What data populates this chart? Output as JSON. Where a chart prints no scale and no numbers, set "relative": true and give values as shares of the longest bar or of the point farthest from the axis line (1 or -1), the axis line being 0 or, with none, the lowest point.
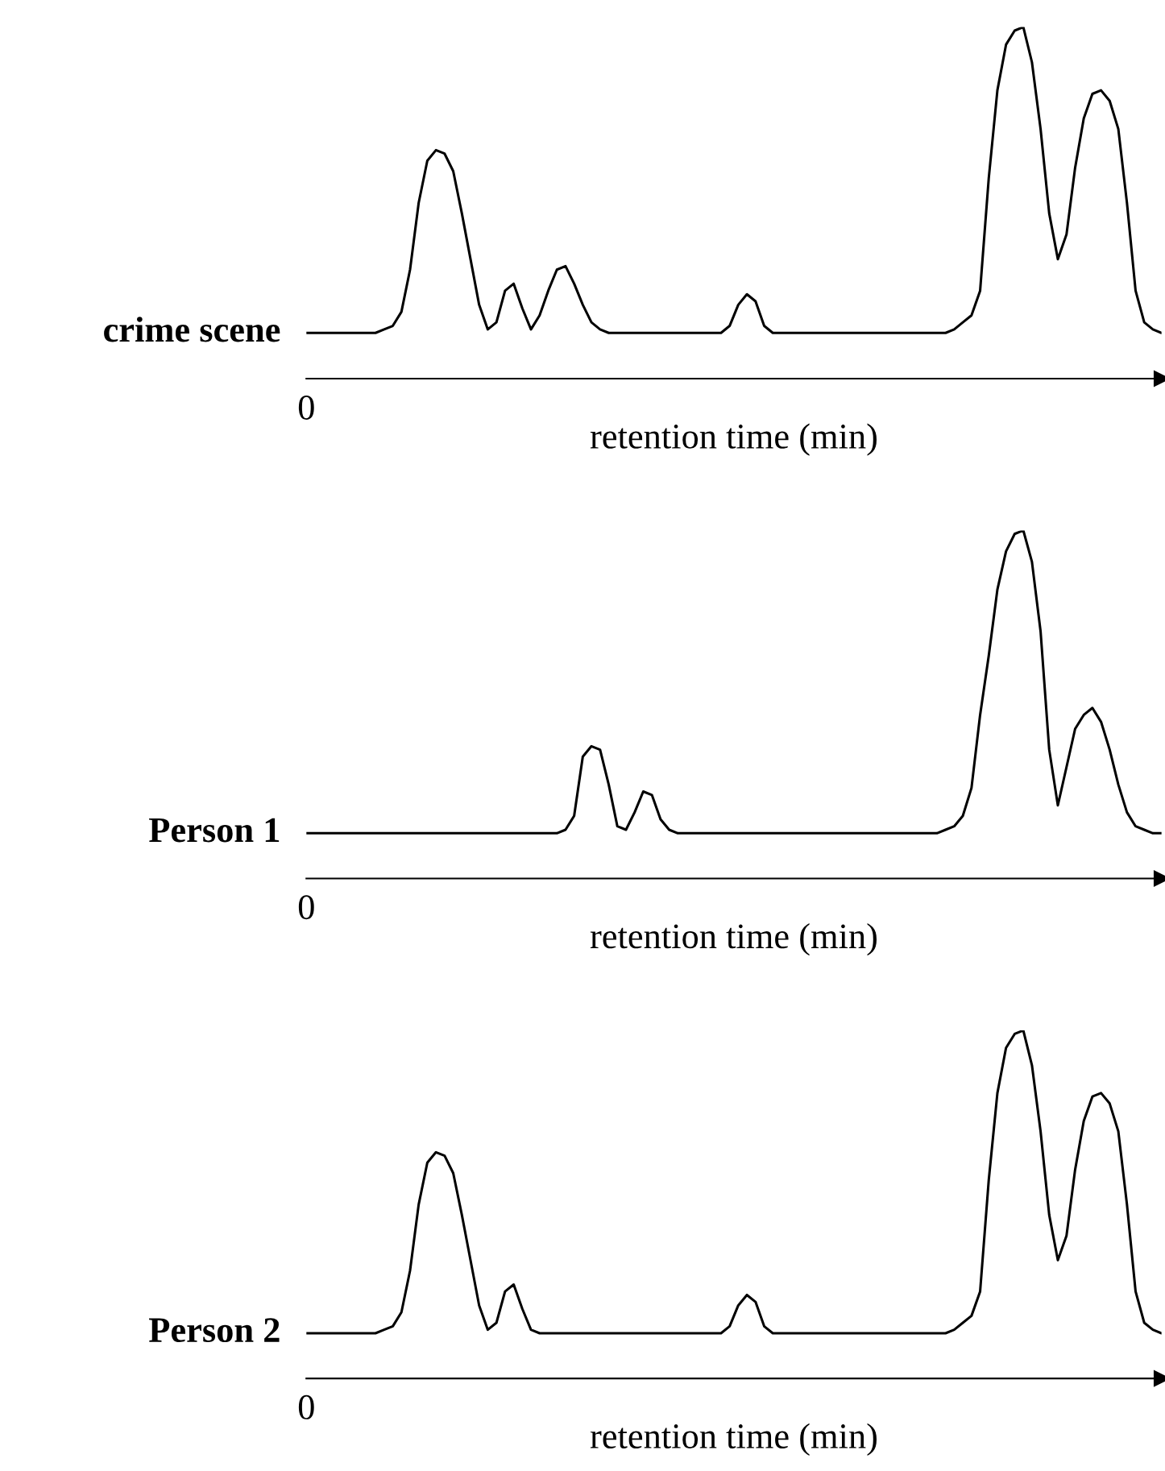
{
  "chart_data": [
    {
      "type": "line",
      "relative": true,
      "ylabel": "crime scene",
      "xlabel": "retention time (min)",
      "annotations": [
        "0"
      ],
      "categories": [
        null,
        null,
        null,
        null,
        null,
        null,
        null,
        null,
        null,
        null,
        null,
        null,
        null,
        null,
        null,
        null,
        null,
        null,
        null,
        null,
        null,
        null,
        null,
        null,
        null,
        null,
        null,
        null,
        null,
        null,
        null,
        null,
        null,
        null,
        null,
        null,
        null,
        null,
        null,
        null,
        null,
        null,
        null,
        null,
        null,
        null,
        null,
        null,
        null,
        null,
        null,
        null,
        null,
        null,
        null,
        null,
        null,
        null,
        null,
        null,
        null,
        null,
        null,
        null,
        null,
        null,
        null,
        null,
        null,
        null,
        null,
        null,
        null,
        null,
        null,
        null,
        null,
        null,
        null,
        null,
        null,
        null,
        null,
        null,
        null,
        null,
        null,
        null,
        null,
        null,
        null,
        null,
        null,
        null,
        null,
        null,
        null,
        null,
        null,
        null
      ],
      "series": [
        {
          "color": "#000000",
          "values": [
            0.13,
            0.13,
            0.13,
            0.13,
            0.13,
            0.13,
            0.13,
            0.13,
            0.13,
            0.14,
            0.15,
            0.19,
            0.31,
            0.5,
            0.62,
            0.65,
            0.64,
            0.59,
            0.47,
            0.34,
            0.21,
            0.14,
            0.16,
            0.25,
            0.27,
            0.2,
            0.14,
            0.18,
            0.25,
            0.31,
            0.32,
            0.27,
            0.21,
            0.16,
            0.14,
            0.13,
            0.13,
            0.13,
            0.13,
            0.13,
            0.13,
            0.13,
            0.13,
            0.13,
            0.13,
            0.13,
            0.13,
            0.13,
            0.13,
            0.15,
            0.21,
            0.24,
            0.22,
            0.15,
            0.13,
            0.13,
            0.13,
            0.13,
            0.13,
            0.13,
            0.13,
            0.13,
            0.13,
            0.13,
            0.13,
            0.13,
            0.13,
            0.13,
            0.13,
            0.13,
            0.13,
            0.13,
            0.13,
            0.13,
            0.13,
            0.14,
            0.16,
            0.18,
            0.25,
            0.57,
            0.82,
            0.95,
            0.99,
            1.0,
            0.9,
            0.71,
            0.47,
            0.34,
            0.41,
            0.6,
            0.74,
            0.81,
            0.82,
            0.79,
            0.71,
            0.5,
            0.25,
            0.16,
            0.14,
            0.13
          ]
        }
      ]
    },
    {
      "type": "line",
      "relative": true,
      "ylabel": "Person 1",
      "xlabel": "retention time (min)",
      "annotations": [
        "0"
      ],
      "categories": [
        null,
        null,
        null,
        null,
        null,
        null,
        null,
        null,
        null,
        null,
        null,
        null,
        null,
        null,
        null,
        null,
        null,
        null,
        null,
        null,
        null,
        null,
        null,
        null,
        null,
        null,
        null,
        null,
        null,
        null,
        null,
        null,
        null,
        null,
        null,
        null,
        null,
        null,
        null,
        null,
        null,
        null,
        null,
        null,
        null,
        null,
        null,
        null,
        null,
        null,
        null,
        null,
        null,
        null,
        null,
        null,
        null,
        null,
        null,
        null,
        null,
        null,
        null,
        null,
        null,
        null,
        null,
        null,
        null,
        null,
        null,
        null,
        null,
        null,
        null,
        null,
        null,
        null,
        null,
        null,
        null,
        null,
        null,
        null,
        null,
        null,
        null,
        null,
        null,
        null,
        null,
        null,
        null,
        null,
        null,
        null,
        null,
        null,
        null,
        null
      ],
      "series": [
        {
          "color": "#000000",
          "values": [
            0.13,
            0.13,
            0.13,
            0.13,
            0.13,
            0.13,
            0.13,
            0.13,
            0.13,
            0.13,
            0.13,
            0.13,
            0.13,
            0.13,
            0.13,
            0.13,
            0.13,
            0.13,
            0.13,
            0.13,
            0.13,
            0.13,
            0.13,
            0.13,
            0.13,
            0.13,
            0.13,
            0.13,
            0.13,
            0.13,
            0.14,
            0.18,
            0.35,
            0.38,
            0.37,
            0.27,
            0.15,
            0.14,
            0.19,
            0.25,
            0.24,
            0.17,
            0.14,
            0.13,
            0.13,
            0.13,
            0.13,
            0.13,
            0.13,
            0.13,
            0.13,
            0.13,
            0.13,
            0.13,
            0.13,
            0.13,
            0.13,
            0.13,
            0.13,
            0.13,
            0.13,
            0.13,
            0.13,
            0.13,
            0.13,
            0.13,
            0.13,
            0.13,
            0.13,
            0.13,
            0.13,
            0.13,
            0.13,
            0.13,
            0.14,
            0.15,
            0.18,
            0.26,
            0.47,
            0.64,
            0.83,
            0.94,
            0.99,
            1.0,
            0.91,
            0.71,
            0.37,
            0.21,
            0.32,
            0.43,
            0.47,
            0.49,
            0.45,
            0.37,
            0.27,
            0.19,
            0.15,
            0.14,
            0.13,
            0.13
          ]
        }
      ]
    },
    {
      "type": "line",
      "relative": true,
      "ylabel": "Person 2",
      "xlabel": "retention time (min)",
      "annotations": [
        "0"
      ],
      "categories": [
        null,
        null,
        null,
        null,
        null,
        null,
        null,
        null,
        null,
        null,
        null,
        null,
        null,
        null,
        null,
        null,
        null,
        null,
        null,
        null,
        null,
        null,
        null,
        null,
        null,
        null,
        null,
        null,
        null,
        null,
        null,
        null,
        null,
        null,
        null,
        null,
        null,
        null,
        null,
        null,
        null,
        null,
        null,
        null,
        null,
        null,
        null,
        null,
        null,
        null,
        null,
        null,
        null,
        null,
        null,
        null,
        null,
        null,
        null,
        null,
        null,
        null,
        null,
        null,
        null,
        null,
        null,
        null,
        null,
        null,
        null,
        null,
        null,
        null,
        null,
        null,
        null,
        null,
        null,
        null,
        null,
        null,
        null,
        null,
        null,
        null,
        null,
        null,
        null,
        null,
        null,
        null,
        null,
        null,
        null,
        null,
        null,
        null,
        null,
        null
      ],
      "series": [
        {
          "color": "#000000",
          "values": [
            0.13,
            0.13,
            0.13,
            0.13,
            0.13,
            0.13,
            0.13,
            0.13,
            0.13,
            0.14,
            0.15,
            0.19,
            0.31,
            0.5,
            0.62,
            0.65,
            0.64,
            0.59,
            0.47,
            0.34,
            0.21,
            0.14,
            0.16,
            0.25,
            0.27,
            0.2,
            0.14,
            0.13,
            0.13,
            0.13,
            0.13,
            0.13,
            0.13,
            0.13,
            0.13,
            0.13,
            0.13,
            0.13,
            0.13,
            0.13,
            0.13,
            0.13,
            0.13,
            0.13,
            0.13,
            0.13,
            0.13,
            0.13,
            0.13,
            0.15,
            0.21,
            0.24,
            0.22,
            0.15,
            0.13,
            0.13,
            0.13,
            0.13,
            0.13,
            0.13,
            0.13,
            0.13,
            0.13,
            0.13,
            0.13,
            0.13,
            0.13,
            0.13,
            0.13,
            0.13,
            0.13,
            0.13,
            0.13,
            0.13,
            0.13,
            0.14,
            0.16,
            0.18,
            0.25,
            0.57,
            0.82,
            0.95,
            0.99,
            1.0,
            0.9,
            0.71,
            0.47,
            0.34,
            0.41,
            0.6,
            0.74,
            0.81,
            0.82,
            0.79,
            0.71,
            0.5,
            0.25,
            0.16,
            0.14,
            0.13
          ]
        }
      ]
    }
  ]
}
